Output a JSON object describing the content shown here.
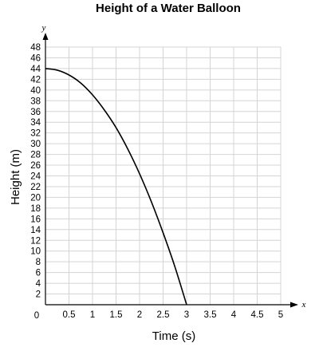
{
  "chart_data": {
    "type": "line",
    "title": "Height of a Water Balloon",
    "xlabel": "Time (s)",
    "ylabel": "Height (m)",
    "x_axis_variable": "x",
    "y_axis_variable": "y",
    "origin_label": "0",
    "xlim": [
      0,
      5
    ],
    "ylim": [
      0,
      48
    ],
    "x_ticks": [
      0.5,
      1,
      1.5,
      2,
      2.5,
      3,
      3.5,
      4,
      4.5,
      5
    ],
    "x_tick_labels": [
      "0.5",
      "1",
      "1.5",
      "2",
      "2.5",
      "3",
      "3.5",
      "4",
      "4.5",
      "5"
    ],
    "y_ticks": [
      2,
      4,
      6,
      8,
      10,
      12,
      14,
      16,
      18,
      20,
      22,
      24,
      26,
      28,
      30,
      32,
      34,
      36,
      38,
      40,
      42,
      44,
      46,
      48
    ],
    "y_tick_labels": [
      "2",
      "4",
      "6",
      "8",
      "10",
      "12",
      "14",
      "16",
      "18",
      "20",
      "22",
      "24",
      "26",
      "28",
      "30",
      "32",
      "34",
      "36",
      "38",
      "40",
      "42",
      "44",
      "46",
      "48"
    ],
    "grid": true,
    "series": [
      {
        "x": [
          0,
          0.25,
          0.5,
          0.75,
          1,
          1.25,
          1.5,
          1.75,
          2,
          2.25,
          2.5,
          2.75,
          3
        ],
        "y": [
          44,
          43.7,
          42.8,
          41.3,
          39.1,
          36.3,
          33,
          29,
          24.4,
          19.2,
          13.4,
          7.1,
          0
        ]
      }
    ]
  }
}
